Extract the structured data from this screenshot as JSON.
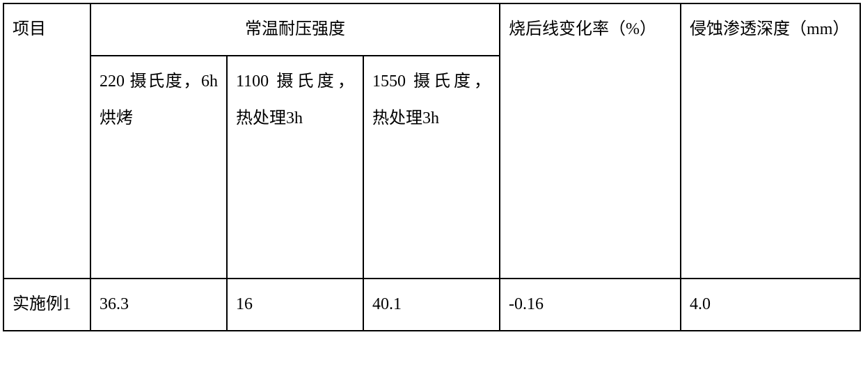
{
  "table": {
    "columns": {
      "col1_width": 125,
      "col2_width": 196,
      "col3_width": 196,
      "col4_width": 196,
      "col5_width": 260,
      "col6_width": 258
    },
    "header": {
      "item_label": "项目",
      "strength_group_label": "常温耐压强度",
      "line_change_rate_label": "烧后线变化率（%）",
      "penetration_depth_label": "侵蚀渗透深度（mm）",
      "sub_headers": {
        "cond_220": "220 摄氏度，6h 烘烤",
        "cond_1100": "1100 摄氏度，热处理3h",
        "cond_1550": "1550 摄氏度，热处理3h"
      }
    },
    "rows": [
      {
        "label": "实施例1",
        "val_220": "36.3",
        "val_1100": "16",
        "val_1550": "40.1",
        "line_change_rate": "-0.16",
        "penetration_depth": "4.0"
      }
    ],
    "border_color": "#000000",
    "text_color": "#000000",
    "background_color": "#ffffff",
    "font_family": "SimSun",
    "font_size_pt": 18,
    "line_height": 2.2
  }
}
